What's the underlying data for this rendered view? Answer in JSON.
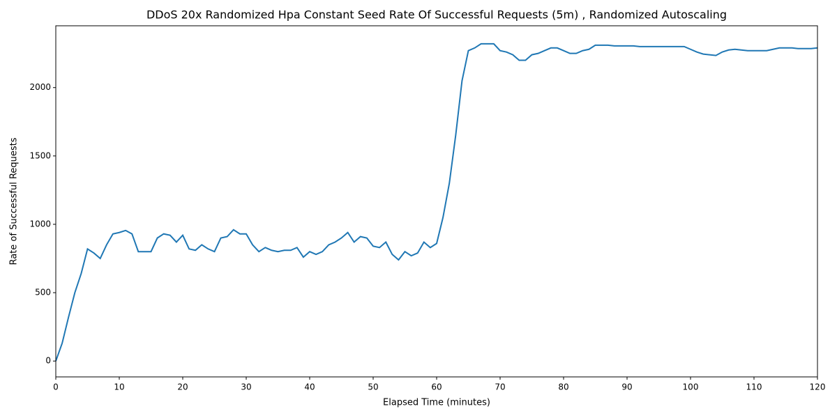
{
  "chart_data": {
    "type": "line",
    "title": "DDoS 20x Randomized Hpa Constant Seed Rate Of Successful Requests (5m) , Randomized Autoscaling",
    "xlabel": "Elapsed Time (minutes)",
    "ylabel": "Rate of Successful Requests",
    "xlim": [
      0,
      120
    ],
    "ylim": [
      -116,
      2452
    ],
    "xticks": [
      0,
      10,
      20,
      30,
      40,
      50,
      60,
      70,
      80,
      90,
      100,
      110,
      120
    ],
    "yticks": [
      0,
      500,
      1000,
      1500,
      2000
    ],
    "grid": false,
    "series": [
      {
        "name": "Rate of Successful Requests",
        "color": "#1f77b4",
        "x": [
          0,
          1,
          2,
          3,
          4,
          5,
          6,
          7,
          8,
          9,
          10,
          11,
          12,
          13,
          14,
          15,
          16,
          17,
          18,
          19,
          20,
          21,
          22,
          23,
          24,
          25,
          26,
          27,
          28,
          29,
          30,
          31,
          32,
          33,
          34,
          35,
          36,
          37,
          38,
          39,
          40,
          41,
          42,
          43,
          44,
          45,
          46,
          47,
          48,
          49,
          50,
          51,
          52,
          53,
          54,
          55,
          56,
          57,
          58,
          59,
          60,
          61,
          62,
          63,
          64,
          65,
          66,
          67,
          68,
          69,
          70,
          71,
          72,
          73,
          74,
          75,
          76,
          77,
          78,
          79,
          80,
          81,
          82,
          83,
          84,
          85,
          86,
          87,
          88,
          89,
          90,
          91,
          92,
          93,
          94,
          95,
          96,
          97,
          98,
          99,
          100,
          101,
          102,
          103,
          104,
          105,
          106,
          107,
          108,
          109,
          110,
          111,
          112,
          113,
          114,
          115,
          116,
          117,
          118,
          119,
          120
        ],
        "values": [
          0,
          130,
          320,
          500,
          640,
          820,
          790,
          750,
          850,
          930,
          940,
          955,
          930,
          800,
          800,
          800,
          900,
          930,
          920,
          870,
          920,
          820,
          810,
          850,
          820,
          800,
          900,
          910,
          960,
          930,
          930,
          850,
          800,
          830,
          810,
          800,
          810,
          810,
          830,
          760,
          800,
          780,
          800,
          850,
          870,
          900,
          940,
          870,
          910,
          900,
          840,
          830,
          870,
          780,
          740,
          800,
          770,
          790,
          870,
          830,
          860,
          1050,
          1300,
          1650,
          2050,
          2270,
          2290,
          2320,
          2320,
          2320,
          2270,
          2260,
          2240,
          2200,
          2200,
          2240,
          2250,
          2270,
          2290,
          2290,
          2270,
          2250,
          2250,
          2270,
          2280,
          2310,
          2310,
          2310,
          2305,
          2305,
          2305,
          2305,
          2300,
          2300,
          2300,
          2300,
          2300,
          2300,
          2300,
          2300,
          2280,
          2260,
          2245,
          2240,
          2235,
          2260,
          2275,
          2280,
          2275,
          2270,
          2270,
          2270,
          2270,
          2280,
          2290,
          2290,
          2290,
          2285,
          2285,
          2285,
          2290
        ]
      }
    ]
  }
}
